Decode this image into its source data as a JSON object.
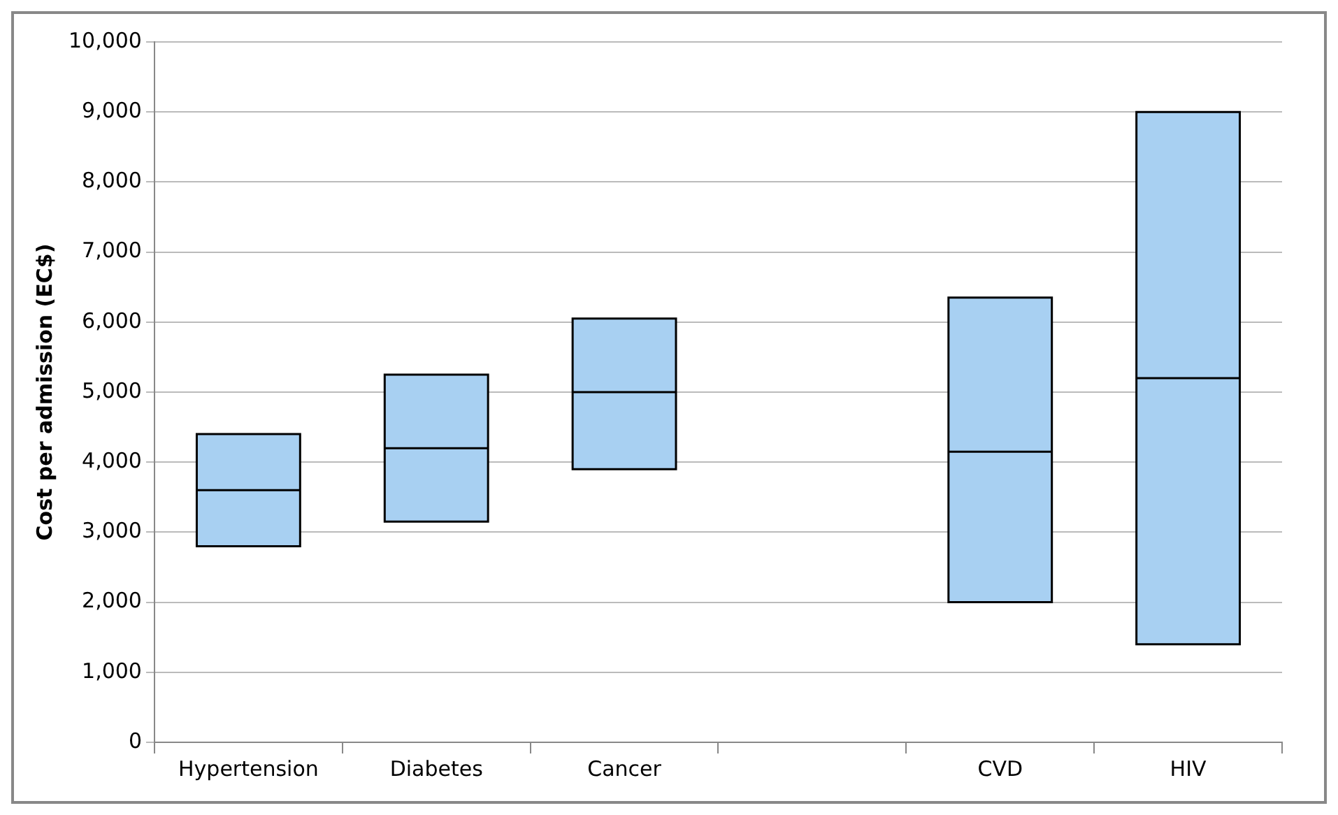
{
  "chart_data": {
    "type": "box",
    "ylabel": "Cost per admission (EC$)",
    "categories": [
      "Hypertension",
      "Diabetes",
      "Cancer",
      null,
      "CVD",
      "HIV"
    ],
    "boxes": [
      {
        "low": 2800,
        "q1": 2800,
        "median": 3600,
        "q3": 4400,
        "high": 4400
      },
      {
        "low": 3150,
        "q1": 3150,
        "median": 4200,
        "q3": 5250,
        "high": 5250
      },
      {
        "low": 3900,
        "q1": 3900,
        "median": 5000,
        "q3": 6050,
        "high": 6050
      },
      null,
      {
        "low": 2000,
        "q1": 2000,
        "median": 4150,
        "q3": 6350,
        "high": 6350
      },
      {
        "low": 1400,
        "q1": 1400,
        "median": 5200,
        "q3": 9000,
        "high": 9000
      }
    ],
    "color": "#a8d0f2",
    "ylim": [
      0,
      10000
    ],
    "yticks": [
      0,
      {
        "value": 1000,
        "label": "1,000"
      },
      {
        "value": 2000,
        "label": "2,000"
      },
      {
        "value": 3000,
        "label": "3,000"
      },
      {
        "value": 4000,
        "label": "4,000"
      },
      {
        "value": 5000,
        "label": "5,000"
      },
      {
        "value": 6000,
        "label": "6,000"
      },
      {
        "value": 7000,
        "label": "7,000"
      },
      {
        "value": 8000,
        "label": "8,000"
      },
      {
        "value": 9000,
        "label": "9,000"
      },
      {
        "value": 10000,
        "label": "10,000"
      }
    ],
    "grid": "y",
    "legend": false
  }
}
